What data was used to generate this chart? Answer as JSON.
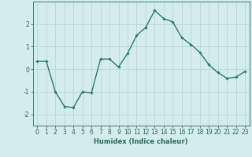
{
  "x": [
    0,
    1,
    2,
    3,
    4,
    5,
    6,
    7,
    8,
    9,
    10,
    11,
    12,
    13,
    14,
    15,
    16,
    17,
    18,
    19,
    20,
    21,
    22,
    23
  ],
  "y": [
    0.35,
    0.35,
    -1.0,
    -1.65,
    -1.7,
    -1.0,
    -1.05,
    0.45,
    0.45,
    0.1,
    0.7,
    1.5,
    1.85,
    2.6,
    2.25,
    2.1,
    1.4,
    1.1,
    0.75,
    0.2,
    -0.15,
    -0.4,
    -0.35,
    -0.1
  ],
  "line_color": "#2a7a6a",
  "marker": "D",
  "markersize": 1.8,
  "linewidth": 1.0,
  "xlabel": "Humidex (Indice chaleur)",
  "ylabel": "",
  "xlim": [
    -0.5,
    23.5
  ],
  "ylim": [
    -2.5,
    3.0
  ],
  "yticks": [
    -2,
    -1,
    0,
    1,
    2
  ],
  "xticks": [
    0,
    1,
    2,
    3,
    4,
    5,
    6,
    7,
    8,
    9,
    10,
    11,
    12,
    13,
    14,
    15,
    16,
    17,
    18,
    19,
    20,
    21,
    22,
    23
  ],
  "bg_color": "#d4ecec",
  "grid_color": "#b8d8d8",
  "text_color": "#2a6b5a",
  "xlabel_fontsize": 6.0,
  "tick_fontsize": 5.5
}
